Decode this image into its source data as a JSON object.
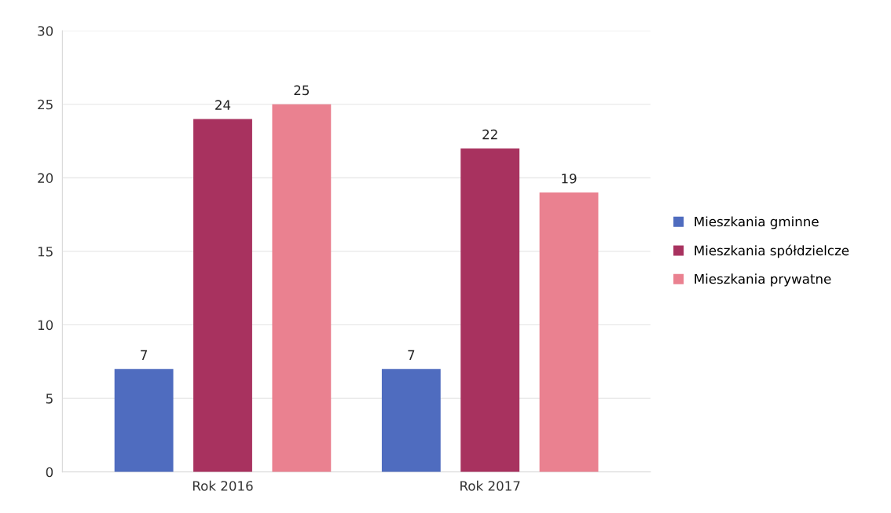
{
  "chart_data": {
    "type": "bar",
    "categories": [
      "Rok 2016",
      "Rok 2017"
    ],
    "series": [
      {
        "name": "Mieszkania gminne",
        "color": "#4f6cbf",
        "values": [
          7,
          7
        ]
      },
      {
        "name": "Mieszkania spółdzielcze",
        "color": "#a8325f",
        "values": [
          24,
          22
        ]
      },
      {
        "name": "Mieszkania prywatne",
        "color": "#ea8190",
        "values": [
          25,
          19
        ]
      }
    ],
    "ylim": [
      0,
      30
    ],
    "yticks": [
      0,
      5,
      10,
      15,
      20,
      25,
      30
    ],
    "grid": "y",
    "legend": "right",
    "data_labels": true
  }
}
